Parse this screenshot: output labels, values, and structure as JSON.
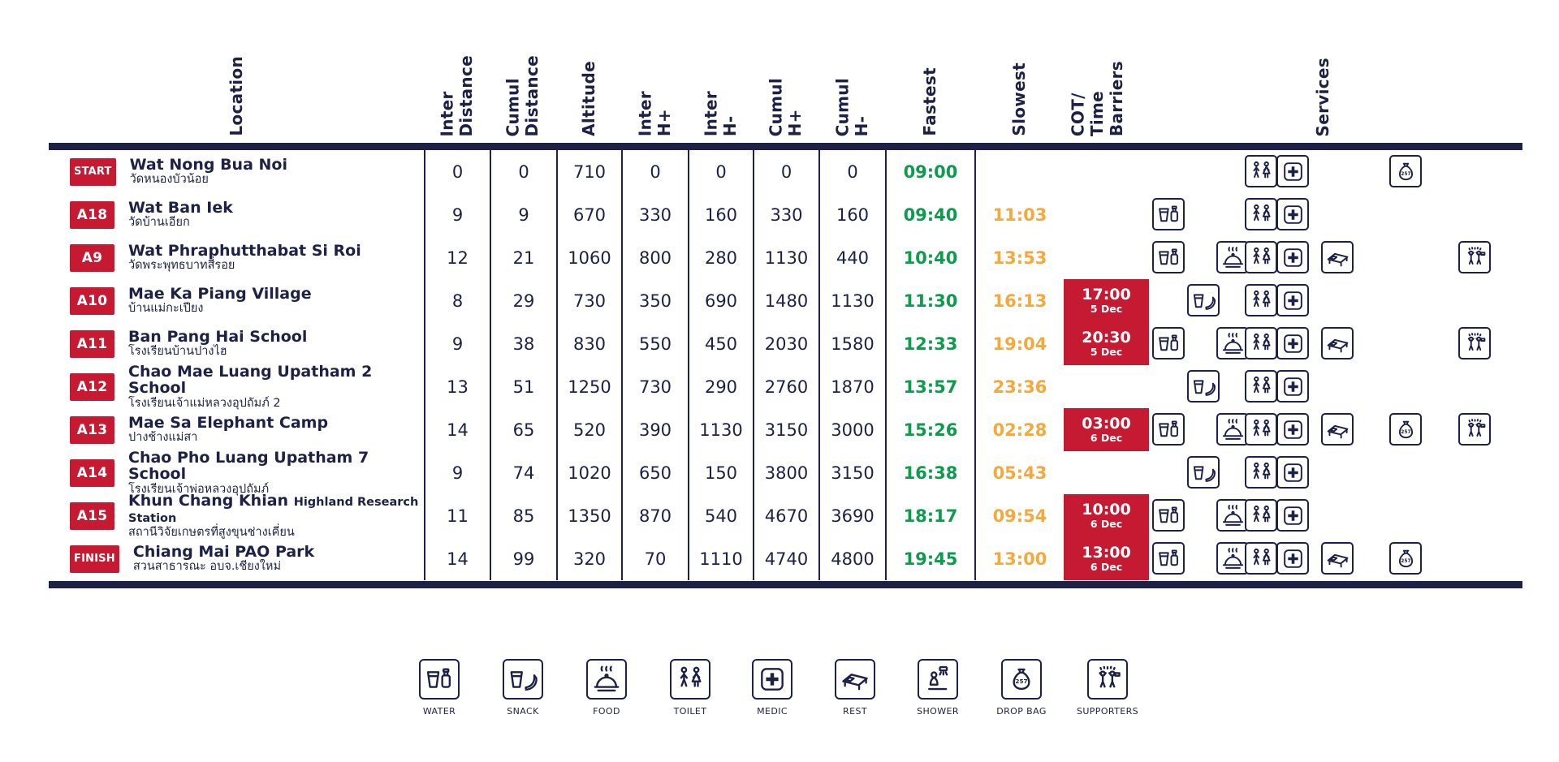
{
  "colors": {
    "navy": "#1d2145",
    "red": "#c61a33",
    "green": "#0e9b4d",
    "orange": "#f5a93c",
    "white": "#ffffff"
  },
  "table": {
    "headers": [
      {
        "label": "Location"
      },
      {
        "label": "Inter\nDistance"
      },
      {
        "label": "Cumul\nDistance"
      },
      {
        "label": "Altitude"
      },
      {
        "label": "Inter\nH+"
      },
      {
        "label": "Inter\nH-"
      },
      {
        "label": "Cumul\nH+"
      },
      {
        "label": "Cumul\nH-"
      },
      {
        "label": "Fastest"
      },
      {
        "label": "Slowest"
      },
      {
        "label": "COT/\nTime\nBarriers"
      },
      {
        "label": "Services"
      }
    ],
    "rows": [
      {
        "badge": "START",
        "name": "Wat Nong Bua Noi",
        "name_suffix": "",
        "thai": "วัดหนองบัวน้อย",
        "inter_distance": "0",
        "cumul_distance": "0",
        "altitude": "710",
        "inter_hplus": "0",
        "inter_hminus": "0",
        "cumul_hplus": "0",
        "cumul_hminus": "0",
        "fastest": "09:00",
        "slowest": "",
        "cot_time": "",
        "cot_date": "",
        "services": [
          "toilet",
          "medic",
          "dropbag"
        ]
      },
      {
        "badge": "A18",
        "name": "Wat Ban Iek",
        "name_suffix": "",
        "thai": "วัดบ้านเอียก",
        "inter_distance": "9",
        "cumul_distance": "9",
        "altitude": "670",
        "inter_hplus": "330",
        "inter_hminus": "160",
        "cumul_hplus": "330",
        "cumul_hminus": "160",
        "fastest": "09:40",
        "slowest": "11:03",
        "cot_time": "",
        "cot_date": "",
        "services": [
          "water",
          "toilet",
          "medic"
        ]
      },
      {
        "badge": "A9",
        "name": "Wat Phraphutthabat Si Roi",
        "name_suffix": "",
        "thai": "วัดพระพุทธบาทสี่รอย",
        "inter_distance": "12",
        "cumul_distance": "21",
        "altitude": "1060",
        "inter_hplus": "800",
        "inter_hminus": "280",
        "cumul_hplus": "1130",
        "cumul_hminus": "440",
        "fastest": "10:40",
        "slowest": "13:53",
        "cot_time": "",
        "cot_date": "",
        "services": [
          "water",
          "food",
          "toilet",
          "medic",
          "rest",
          "supporters"
        ]
      },
      {
        "badge": "A10",
        "name": "Mae Ka Piang Village",
        "name_suffix": "",
        "thai": "บ้านแม่กะเปียง",
        "inter_distance": "8",
        "cumul_distance": "29",
        "altitude": "730",
        "inter_hplus": "350",
        "inter_hminus": "690",
        "cumul_hplus": "1480",
        "cumul_hminus": "1130",
        "fastest": "11:30",
        "slowest": "16:13",
        "cot_time": "17:00",
        "cot_date": "5 Dec",
        "services": [
          "snack",
          "toilet",
          "medic"
        ]
      },
      {
        "badge": "A11",
        "name": "Ban Pang Hai School",
        "name_suffix": "",
        "thai": "โรงเรียนบ้านปางไฮ",
        "inter_distance": "9",
        "cumul_distance": "38",
        "altitude": "830",
        "inter_hplus": "550",
        "inter_hminus": "450",
        "cumul_hplus": "2030",
        "cumul_hminus": "1580",
        "fastest": "12:33",
        "slowest": "19:04",
        "cot_time": "20:30",
        "cot_date": "5 Dec",
        "services": [
          "water",
          "food",
          "toilet",
          "medic",
          "rest",
          "supporters"
        ]
      },
      {
        "badge": "A12",
        "name": "Chao Mae Luang Upatham 2 School",
        "name_suffix": "",
        "thai": "โรงเรียนเจ้าแม่หลวงอุปถัมภ์ 2",
        "inter_distance": "13",
        "cumul_distance": "51",
        "altitude": "1250",
        "inter_hplus": "730",
        "inter_hminus": "290",
        "cumul_hplus": "2760",
        "cumul_hminus": "1870",
        "fastest": "13:57",
        "slowest": "23:36",
        "cot_time": "",
        "cot_date": "",
        "services": [
          "snack",
          "toilet",
          "medic"
        ]
      },
      {
        "badge": "A13",
        "name": "Mae Sa Elephant Camp",
        "name_suffix": "",
        "thai": "ปางช้างแม่สา",
        "inter_distance": "14",
        "cumul_distance": "65",
        "altitude": "520",
        "inter_hplus": "390",
        "inter_hminus": "1130",
        "cumul_hplus": "3150",
        "cumul_hminus": "3000",
        "fastest": "15:26",
        "slowest": "02:28",
        "cot_time": "03:00",
        "cot_date": "6 Dec",
        "services": [
          "water",
          "food",
          "toilet",
          "medic",
          "rest",
          "dropbag",
          "supporters"
        ]
      },
      {
        "badge": "A14",
        "name": "Chao Pho Luang Upatham 7 School",
        "name_suffix": "",
        "thai": "โรงเรียนเจ้าพ่อหลวงอุปถัมภ์",
        "inter_distance": "9",
        "cumul_distance": "74",
        "altitude": "1020",
        "inter_hplus": "650",
        "inter_hminus": "150",
        "cumul_hplus": "3800",
        "cumul_hminus": "3150",
        "fastest": "16:38",
        "slowest": "05:43",
        "cot_time": "",
        "cot_date": "",
        "services": [
          "snack",
          "toilet",
          "medic"
        ]
      },
      {
        "badge": "A15",
        "name": "Khun Chang Khian",
        "name_suffix": "Highland Research Station",
        "thai": "สถานีวิจัยเกษตรที่สูงขุนช่างเคี่ยน",
        "inter_distance": "11",
        "cumul_distance": "85",
        "altitude": "1350",
        "inter_hplus": "870",
        "inter_hminus": "540",
        "cumul_hplus": "4670",
        "cumul_hminus": "3690",
        "fastest": "18:17",
        "slowest": "09:54",
        "cot_time": "10:00",
        "cot_date": "6 Dec",
        "services": [
          "water",
          "food",
          "toilet",
          "medic"
        ]
      },
      {
        "badge": "FINISH",
        "name": "Chiang Mai PAO Park",
        "name_suffix": "",
        "thai": "สวนสาธารณะ อบจ.เชียงใหม่",
        "inter_distance": "14",
        "cumul_distance": "99",
        "altitude": "320",
        "inter_hplus": "70",
        "inter_hminus": "1110",
        "cumul_hplus": "4740",
        "cumul_hminus": "4800",
        "fastest": "19:45",
        "slowest": "13:00",
        "cot_time": "13:00",
        "cot_date": "6 Dec",
        "services": [
          "water",
          "food",
          "toilet",
          "medic",
          "rest",
          "dropbag"
        ]
      }
    ]
  },
  "legend": [
    {
      "icon": "water",
      "label": "WATER"
    },
    {
      "icon": "snack",
      "label": "SNACK"
    },
    {
      "icon": "food",
      "label": "FOOD"
    },
    {
      "icon": "toilet",
      "label": "TOILET"
    },
    {
      "icon": "medic",
      "label": "MEDIC"
    },
    {
      "icon": "rest",
      "label": "REST"
    },
    {
      "icon": "shower",
      "label": "SHOWER"
    },
    {
      "icon": "dropbag",
      "label": "DROP BAG"
    },
    {
      "icon": "supporters",
      "label": "SUPPORTERS"
    }
  ],
  "dropbag_number": "257"
}
